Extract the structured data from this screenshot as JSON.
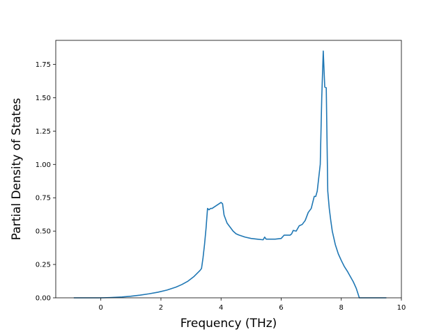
{
  "chart_data": {
    "type": "line",
    "title": "",
    "xlabel": "Frequency (THz)",
    "ylabel": "Partial Density of States",
    "xlim": [
      -1.5,
      10.0
    ],
    "ylim": [
      0.0,
      1.93
    ],
    "xticks": [
      0,
      2,
      4,
      6,
      8,
      10
    ],
    "xtick_labels": [
      "0",
      "2",
      "4",
      "6",
      "8",
      "10"
    ],
    "yticks": [
      0.0,
      0.25,
      0.5,
      0.75,
      1.0,
      1.25,
      1.5,
      1.75
    ],
    "ytick_labels": [
      "0.00",
      "0.25",
      "0.50",
      "0.75",
      "1.00",
      "1.25",
      "1.50",
      "1.75"
    ],
    "grid": false,
    "legend": "none",
    "series": [
      {
        "color": "#1f77b4",
        "x": [
          -0.9,
          -0.5,
          0.0,
          0.3,
          0.7,
          1.0,
          1.3,
          1.6,
          1.9,
          2.2,
          2.5,
          2.7,
          2.9,
          3.1,
          3.3,
          3.35,
          3.4,
          3.45,
          3.5,
          3.55,
          3.6,
          3.65,
          3.7,
          3.8,
          3.9,
          4.0,
          4.05,
          4.1,
          4.2,
          4.3,
          4.4,
          4.5,
          4.6,
          4.8,
          5.0,
          5.2,
          5.4,
          5.45,
          5.5,
          5.8,
          6.0,
          6.1,
          6.3,
          6.35,
          6.4,
          6.5,
          6.6,
          6.7,
          6.8,
          6.9,
          7.0,
          7.1,
          7.15,
          7.2,
          7.3,
          7.35,
          7.4,
          7.45,
          7.5,
          7.55,
          7.6,
          7.65,
          7.7,
          7.75,
          7.8,
          7.9,
          8.0,
          8.1,
          8.2,
          8.3,
          8.4,
          8.5,
          8.6,
          8.65,
          8.8,
          9.0,
          9.5
        ],
        "y": [
          0.0,
          0.0,
          0.0,
          0.002,
          0.006,
          0.012,
          0.02,
          0.03,
          0.042,
          0.058,
          0.08,
          0.1,
          0.125,
          0.16,
          0.205,
          0.22,
          0.3,
          0.4,
          0.52,
          0.67,
          0.66,
          0.67,
          0.67,
          0.685,
          0.7,
          0.715,
          0.705,
          0.62,
          0.56,
          0.53,
          0.5,
          0.48,
          0.47,
          0.455,
          0.445,
          0.44,
          0.435,
          0.455,
          0.44,
          0.44,
          0.445,
          0.47,
          0.47,
          0.48,
          0.505,
          0.5,
          0.54,
          0.55,
          0.58,
          0.64,
          0.67,
          0.76,
          0.76,
          0.8,
          1.0,
          1.5,
          1.85,
          1.58,
          1.575,
          0.8,
          0.67,
          0.58,
          0.5,
          0.45,
          0.4,
          0.33,
          0.28,
          0.235,
          0.2,
          0.16,
          0.12,
          0.07,
          0.0,
          0.0,
          0.0,
          0.0,
          0.0
        ]
      }
    ]
  }
}
